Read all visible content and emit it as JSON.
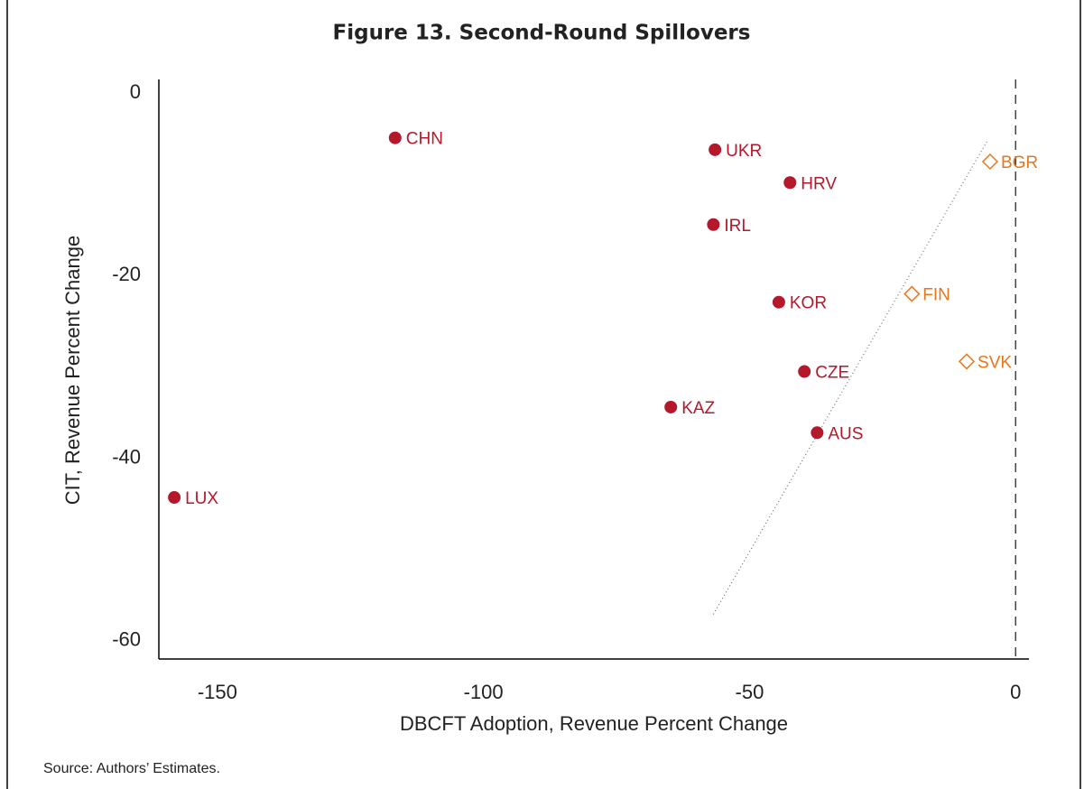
{
  "chart_data": {
    "type": "scatter",
    "title": "Figure 13. Second-Round Spillovers",
    "x_label": "DBCFT Adoption, Revenue Percent Change",
    "y_label": "CIT, Revenue Percent Change",
    "source": "Source: Authors’ Estimates.",
    "xlim": [
      -161,
      2.5
    ],
    "ylim": [
      -62,
      1.5
    ],
    "xticks": [
      -150,
      -100,
      -50,
      0
    ],
    "yticks": [
      0,
      -20,
      -40,
      -60
    ],
    "vline": 0,
    "trend_line": {
      "x": [
        -56.8,
        -5.4
      ],
      "y": [
        -57.1,
        -5.3
      ]
    },
    "series": [
      {
        "color": "#b5172b",
        "marker": "circle",
        "labels": [
          "CHN",
          "UKR",
          "HRV",
          "IRL",
          "KOR",
          "CZE",
          "KAZ",
          "AUS",
          "LUX"
        ],
        "x": [
          -116.6,
          -56.5,
          -42.4,
          -56.8,
          -44.5,
          -39.7,
          -64.8,
          -37.3,
          -158.1
        ],
        "values": [
          -4.9,
          -6.2,
          -9.8,
          -14.4,
          -22.9,
          -30.5,
          -34.4,
          -37.2,
          -44.3
        ]
      },
      {
        "color": "#e8761b",
        "marker": "diamond",
        "labels": [
          "BGR",
          "FIN",
          "SVK"
        ],
        "x": [
          -4.8,
          -19.5,
          -9.2
        ],
        "values": [
          -7.5,
          -22.0,
          -29.4
        ]
      }
    ]
  }
}
